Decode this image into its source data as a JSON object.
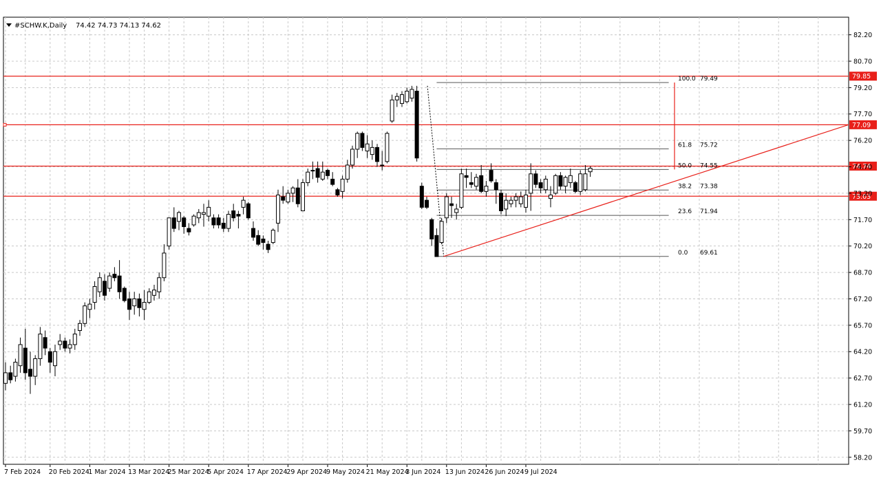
{
  "header": {
    "symbol": "#SCHW.K,Daily",
    "ohlc": "74.42 74.73 74.13 74.62"
  },
  "chart_data": {
    "type": "candlestick",
    "title": "#SCHW.K,Daily 74.42 74.73 74.13 74.62",
    "ylim": [
      57.8,
      83.2
    ],
    "grid": true,
    "yticks": [
      "58.20",
      "59.70",
      "61.20",
      "62.70",
      "64.20",
      "65.70",
      "67.20",
      "68.70",
      "70.20",
      "71.70",
      "73.20",
      "74.70",
      "76.20",
      "77.70",
      "79.20",
      "80.70",
      "82.20"
    ],
    "xticks": [
      {
        "label": "7 Feb 2024",
        "i": 0
      },
      {
        "label": "20 Feb 2024",
        "i": 9
      },
      {
        "label": "1 Mar 2024",
        "i": 17
      },
      {
        "label": "13 Mar 2024",
        "i": 25
      },
      {
        "label": "25 Mar 2024",
        "i": 33
      },
      {
        "label": "5 Apr 2024",
        "i": 41
      },
      {
        "label": "17 Apr 2024",
        "i": 49
      },
      {
        "label": "29 Apr 2024",
        "i": 57
      },
      {
        "label": "9 May 2024",
        "i": 65
      },
      {
        "label": "21 May 2024",
        "i": 73
      },
      {
        "label": "3 Jun 2024",
        "i": 81
      },
      {
        "label": "13 Jun 2024",
        "i": 89
      },
      {
        "label": "26 Jun 2024",
        "i": 97
      },
      {
        "label": "9 Jul 2024",
        "i": 105
      }
    ],
    "candles": [
      [
        62.4,
        63.6,
        62.0,
        63.0
      ],
      [
        63.0,
        63.4,
        62.4,
        62.6
      ],
      [
        62.8,
        63.8,
        62.5,
        63.6
      ],
      [
        63.4,
        65.0,
        63.0,
        64.6
      ],
      [
        64.4,
        65.5,
        62.6,
        63.0
      ],
      [
        63.2,
        64.2,
        61.8,
        62.8
      ],
      [
        62.8,
        64.0,
        62.3,
        63.8
      ],
      [
        63.8,
        65.6,
        63.4,
        65.2
      ],
      [
        65.0,
        65.4,
        64.0,
        64.4
      ],
      [
        64.2,
        64.4,
        63.0,
        63.6
      ],
      [
        63.4,
        64.6,
        62.8,
        64.2
      ],
      [
        64.6,
        65.2,
        64.3,
        64.8
      ],
      [
        64.8,
        65.0,
        64.2,
        64.4
      ],
      [
        64.4,
        64.9,
        64.1,
        64.6
      ],
      [
        64.6,
        65.5,
        64.3,
        65.2
      ],
      [
        65.4,
        66.0,
        65.1,
        65.8
      ],
      [
        65.8,
        67.0,
        65.6,
        66.8
      ],
      [
        66.6,
        67.2,
        66.1,
        66.9
      ],
      [
        67.0,
        68.2,
        66.6,
        67.9
      ],
      [
        67.6,
        68.7,
        67.3,
        68.4
      ],
      [
        68.2,
        68.6,
        67.1,
        67.4
      ],
      [
        67.8,
        68.7,
        67.6,
        68.5
      ],
      [
        68.6,
        69.0,
        68.2,
        68.4
      ],
      [
        68.5,
        69.4,
        67.2,
        67.6
      ],
      [
        67.8,
        67.9,
        67.0,
        67.1
      ],
      [
        67.2,
        67.6,
        66.0,
        66.6
      ],
      [
        66.8,
        67.6,
        66.3,
        67.2
      ],
      [
        67.2,
        67.5,
        66.2,
        66.7
      ],
      [
        66.6,
        67.7,
        66.0,
        67.0
      ],
      [
        67.0,
        67.8,
        66.9,
        67.6
      ],
      [
        67.4,
        68.0,
        67.1,
        67.7
      ],
      [
        67.6,
        68.7,
        67.2,
        68.4
      ],
      [
        68.4,
        70.3,
        68.2,
        69.8
      ],
      [
        70.2,
        71.8,
        70.0,
        71.8
      ],
      [
        71.8,
        72.4,
        71.0,
        71.2
      ],
      [
        71.6,
        72.2,
        71.1,
        72.1
      ],
      [
        71.8,
        71.9,
        70.9,
        71.3
      ],
      [
        71.2,
        71.5,
        70.8,
        71.0
      ],
      [
        71.4,
        72.0,
        71.3,
        71.9
      ],
      [
        71.8,
        72.3,
        71.5,
        72.1
      ],
      [
        72.0,
        72.6,
        71.3,
        72.1
      ],
      [
        71.9,
        72.8,
        71.6,
        72.4
      ],
      [
        71.8,
        72.0,
        71.2,
        71.4
      ],
      [
        71.8,
        72.0,
        71.2,
        71.4
      ],
      [
        71.5,
        71.8,
        71.0,
        71.2
      ],
      [
        71.2,
        72.2,
        71.0,
        72.0
      ],
      [
        72.2,
        72.6,
        71.6,
        71.8
      ],
      [
        72.0,
        72.2,
        71.2,
        71.9
      ],
      [
        72.4,
        73.0,
        72.0,
        72.8
      ],
      [
        72.6,
        72.7,
        71.7,
        71.8
      ],
      [
        71.2,
        71.6,
        70.5,
        70.7
      ],
      [
        70.8,
        71.1,
        70.2,
        70.3
      ],
      [
        70.6,
        70.8,
        70.0,
        70.4
      ],
      [
        70.3,
        70.5,
        69.8,
        70.0
      ],
      [
        70.4,
        71.2,
        70.3,
        71.1
      ],
      [
        71.5,
        73.4,
        71.0,
        73.1
      ],
      [
        73.0,
        73.6,
        72.6,
        72.8
      ],
      [
        72.7,
        73.4,
        72.6,
        73.2
      ],
      [
        73.2,
        73.6,
        72.7,
        73.5
      ],
      [
        73.5,
        74.0,
        72.4,
        72.6
      ],
      [
        72.2,
        74.0,
        72.2,
        73.8
      ],
      [
        73.8,
        74.6,
        73.6,
        74.4
      ],
      [
        74.5,
        75.0,
        74.0,
        74.5
      ],
      [
        74.6,
        75.0,
        73.8,
        74.1
      ],
      [
        74.0,
        75.0,
        73.9,
        74.4
      ],
      [
        74.5,
        74.6,
        74.0,
        74.2
      ],
      [
        74.0,
        74.4,
        73.6,
        73.7
      ],
      [
        73.4,
        73.5,
        73.0,
        73.1
      ],
      [
        73.3,
        74.2,
        72.9,
        74.0
      ],
      [
        74.0,
        75.1,
        73.8,
        74.8
      ],
      [
        74.8,
        75.9,
        74.6,
        75.7
      ],
      [
        75.7,
        76.7,
        75.2,
        76.6
      ],
      [
        76.6,
        76.7,
        75.6,
        75.8
      ],
      [
        75.6,
        76.5,
        75.2,
        76.0
      ],
      [
        75.4,
        76.2,
        75.1,
        75.8
      ],
      [
        75.8,
        76.0,
        74.7,
        75.0
      ],
      [
        74.8,
        75.6,
        74.5,
        74.8
      ],
      [
        75.0,
        76.7,
        74.9,
        76.6
      ],
      [
        77.3,
        78.8,
        77.2,
        78.5
      ],
      [
        78.5,
        78.9,
        78.1,
        78.7
      ],
      [
        78.3,
        79.0,
        78.1,
        78.8
      ],
      [
        78.4,
        79.2,
        78.3,
        79.0
      ],
      [
        78.6,
        79.3,
        78.4,
        79.1
      ],
      [
        79.0,
        79.3,
        75.0,
        75.2
      ],
      [
        73.6,
        73.8,
        72.3,
        72.4
      ],
      [
        72.8,
        73.0,
        72.3,
        72.4
      ],
      [
        71.7,
        71.8,
        70.2,
        70.6
      ],
      [
        70.8,
        71.2,
        69.6,
        69.6
      ],
      [
        70.4,
        71.8,
        70.3,
        71.6
      ],
      [
        71.8,
        73.2,
        71.5,
        73.0
      ],
      [
        72.6,
        73.0,
        71.8,
        72.5
      ],
      [
        72.1,
        72.6,
        71.7,
        72.3
      ],
      [
        72.4,
        74.6,
        72.3,
        74.3
      ],
      [
        74.2,
        74.6,
        73.5,
        74.1
      ],
      [
        73.8,
        74.4,
        73.5,
        73.7
      ],
      [
        73.6,
        74.3,
        73.4,
        74.1
      ],
      [
        74.2,
        74.8,
        73.2,
        73.3
      ],
      [
        73.3,
        73.9,
        73.0,
        73.6
      ],
      [
        74.5,
        74.9,
        73.8,
        73.9
      ],
      [
        73.8,
        74.0,
        72.6,
        73.4
      ],
      [
        73.2,
        73.4,
        72.0,
        72.2
      ],
      [
        72.3,
        73.2,
        71.9,
        72.8
      ],
      [
        72.6,
        73.0,
        72.4,
        72.8
      ],
      [
        72.8,
        73.2,
        72.4,
        73.0
      ],
      [
        72.6,
        73.3,
        72.4,
        73.0
      ],
      [
        72.4,
        73.4,
        72.1,
        73.1
      ],
      [
        73.2,
        74.9,
        72.2,
        74.3
      ],
      [
        74.3,
        74.5,
        73.5,
        73.7
      ],
      [
        73.8,
        74.0,
        73.2,
        73.5
      ],
      [
        73.4,
        74.2,
        73.2,
        74.0
      ],
      [
        72.9,
        73.6,
        72.4,
        73.1
      ],
      [
        73.2,
        74.3,
        73.1,
        74.2
      ],
      [
        74.2,
        74.4,
        73.4,
        73.6
      ],
      [
        73.6,
        74.2,
        73.2,
        74.1
      ],
      [
        73.8,
        74.6,
        73.5,
        74.2
      ],
      [
        73.8,
        73.9,
        73.2,
        73.3
      ],
      [
        73.3,
        74.5,
        73.1,
        74.3
      ],
      [
        73.4,
        74.8,
        73.3,
        74.3
      ],
      [
        74.42,
        74.73,
        74.13,
        74.62
      ]
    ],
    "horizontal_levels": [
      {
        "value": 79.85,
        "label": "79.85",
        "color": "#e8201a"
      },
      {
        "value": 77.09,
        "label": "77.09",
        "color": "#e8201a"
      },
      {
        "value": 74.74,
        "label": "74.74",
        "color": "#e8201a"
      },
      {
        "value": 73.03,
        "label": "73.03",
        "color": "#e8201a"
      }
    ],
    "fibonacci": {
      "start_index": 87,
      "end_index": 113,
      "levels": [
        {
          "ratio": "100.0",
          "value": 79.49
        },
        {
          "ratio": "61.8",
          "value": 75.72
        },
        {
          "ratio": "50.0",
          "value": 74.55
        },
        {
          "ratio": "38.2",
          "value": 73.38
        },
        {
          "ratio": "23.6",
          "value": 71.94
        },
        {
          "ratio": "0.0",
          "value": 69.61
        }
      ],
      "color": "#555555"
    },
    "fib_trendline": {
      "from_index": 85,
      "from_value": 79.3,
      "to_index": 88,
      "to_value": 69.61
    },
    "trendline": {
      "from_index": 88,
      "from_value": 69.61,
      "to_index": 152,
      "to_value": 77.09,
      "color": "#e8201a"
    },
    "fib_arrow": {
      "index": 121,
      "from_value": 74.55,
      "to_value": 79.49,
      "color": "#e8201a"
    }
  }
}
